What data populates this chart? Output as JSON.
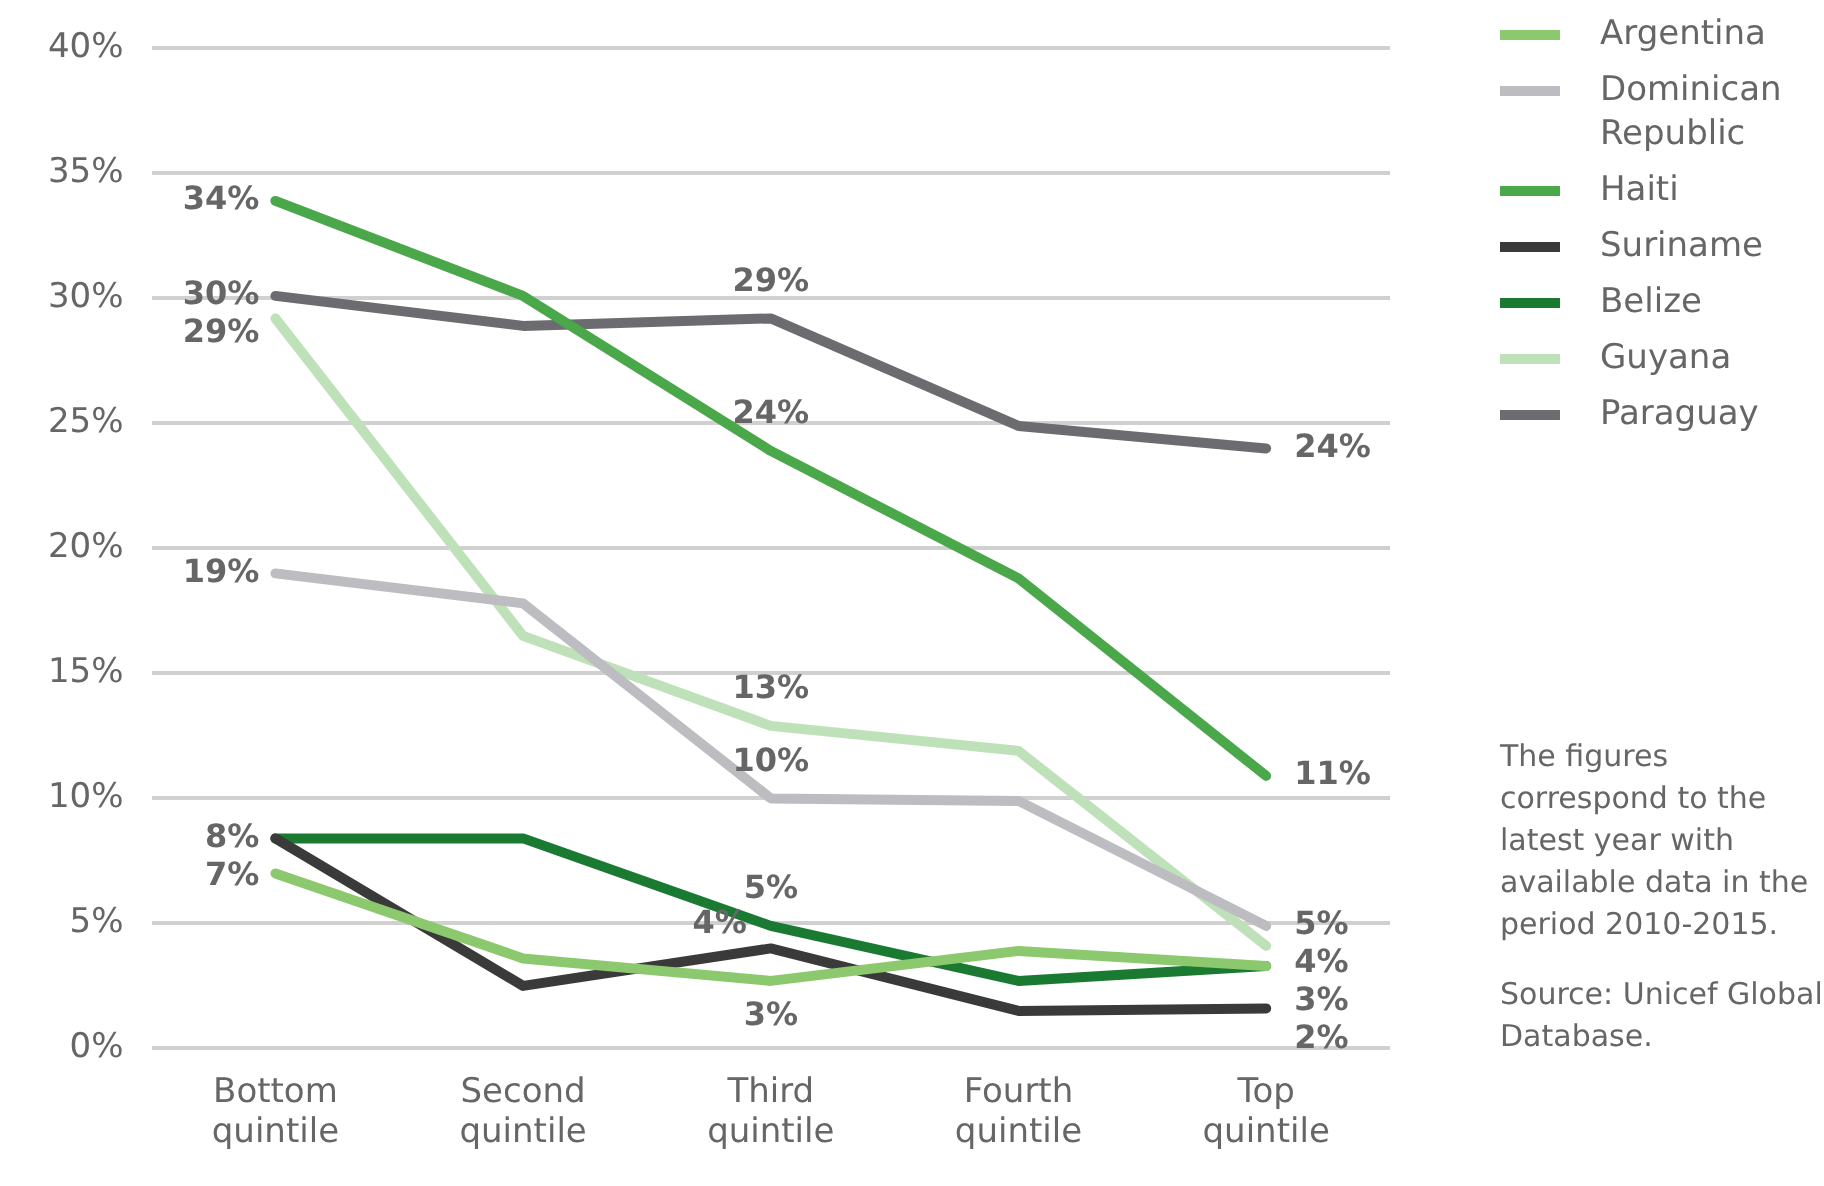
{
  "chart_data": {
    "type": "line",
    "categories": [
      "Bottom quintile",
      "Second quintile",
      "Third quintile",
      "Fourth quintile",
      "Top quintile"
    ],
    "series": [
      {
        "name": "Argentina",
        "color": "#8cc96e",
        "values": [
          7,
          3.6,
          2.7,
          3.9,
          3.3
        ],
        "value_labels": [
          "7%",
          null,
          "3%",
          null,
          null
        ]
      },
      {
        "name": "Dominican Republic",
        "color": "#bdbdc1",
        "values": [
          19,
          17.8,
          10,
          9.9,
          4.9
        ],
        "value_labels": [
          "19%",
          null,
          "10%",
          null,
          "5%"
        ]
      },
      {
        "name": "Haiti",
        "color": "#4aa74a",
        "values": [
          33.9,
          30.1,
          23.9,
          18.8,
          10.9
        ],
        "value_labels": [
          "34%",
          null,
          "24%",
          null,
          "11%"
        ]
      },
      {
        "name": "Suriname",
        "color": "#3a3a3a",
        "values": [
          8.4,
          2.5,
          4,
          1.5,
          1.6
        ],
        "value_labels": [
          "8%",
          null,
          "4%",
          null,
          "2%"
        ]
      },
      {
        "name": "Belize",
        "color": "#1a7a32",
        "values": [
          8.4,
          8.4,
          4.9,
          2.7,
          3.3
        ],
        "value_labels": [
          null,
          null,
          "5%",
          null,
          "3%"
        ]
      },
      {
        "name": "Guyana",
        "color": "#bfe1ba",
        "values": [
          29.2,
          16.5,
          12.9,
          11.9,
          4.1
        ],
        "value_labels": [
          "29%",
          null,
          "13%",
          null,
          "4%"
        ]
      },
      {
        "name": "Paraguay",
        "color": "#6b6b70",
        "values": [
          30.1,
          28.9,
          29.2,
          24.9,
          24
        ],
        "value_labels": [
          "30%",
          null,
          "29%",
          null,
          "24%"
        ]
      }
    ],
    "ylim": [
      0,
      40
    ],
    "yticks": [
      {
        "value": 0,
        "label": "0%"
      },
      {
        "value": 5,
        "label": "5%"
      },
      {
        "value": 10,
        "label": "10%"
      },
      {
        "value": 15,
        "label": "15%"
      },
      {
        "value": 20,
        "label": "20%"
      },
      {
        "value": 25,
        "label": "25%"
      },
      {
        "value": 30,
        "label": "30%"
      },
      {
        "value": 35,
        "label": "35%"
      },
      {
        "value": 40,
        "label": "40%"
      }
    ],
    "grid": "y",
    "legend": "top right",
    "marker": "none",
    "line_style": "solid",
    "annotations": [
      "The figures correspond to the latest year with available data in the period 2010-2015.",
      "Source: Unicef Global Database."
    ]
  }
}
